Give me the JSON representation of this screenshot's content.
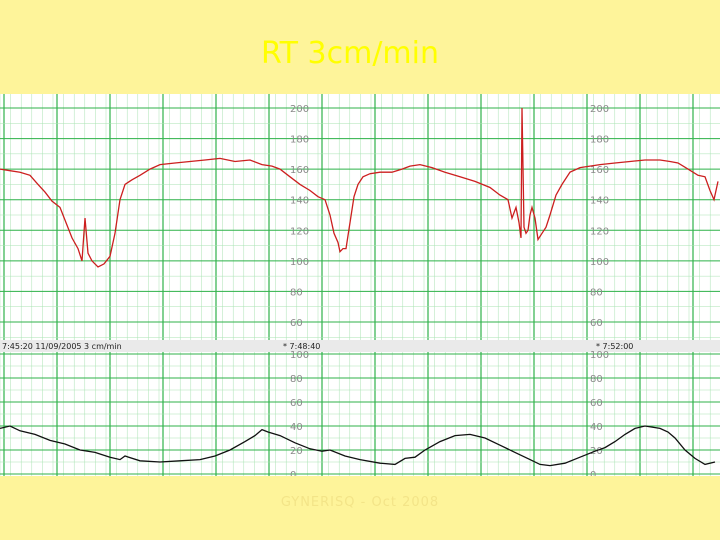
{
  "slide": {
    "title": "RT 3cm/min",
    "footer": "GYNERISQ  -  Oct 2008"
  },
  "strip": {
    "timestamps": [
      "7:45:20  11/09/2005  3 cm/min",
      "* 7:48:40",
      "* 7:52:00"
    ]
  },
  "colors": {
    "fhr": "#cc1f1f",
    "toco": "#111111",
    "grid_major": "#2fb24a",
    "grid_minor": "#a9e3b3",
    "paper": "#ffffff"
  },
  "chart_data": [
    {
      "type": "line",
      "panel": "fetal-heart-rate",
      "ylim": [
        50,
        210
      ],
      "yticks": [
        60,
        80,
        100,
        120,
        140,
        160,
        180,
        200
      ],
      "xlim": [
        0,
        720
      ],
      "series": [
        {
          "color": "#cc1f1f",
          "x": [
            0,
            10,
            20,
            30,
            38,
            45,
            52,
            60,
            66,
            72,
            78,
            82,
            85,
            88,
            92,
            98,
            104,
            110,
            115,
            120,
            125,
            132,
            140,
            150,
            160,
            175,
            190,
            205,
            220,
            235,
            250,
            262,
            272,
            280,
            290,
            300,
            310,
            318,
            325,
            330,
            334,
            338,
            340,
            343,
            346,
            350,
            354,
            358,
            363,
            370,
            380,
            392,
            402,
            410,
            420,
            432,
            445,
            460,
            475,
            490,
            500,
            508,
            512,
            516,
            519,
            521,
            522,
            524,
            526,
            528,
            530,
            532,
            535,
            538,
            542,
            546,
            550,
            556,
            562,
            570,
            580,
            590,
            600,
            615,
            630,
            645,
            660,
            670,
            678,
            688,
            698,
            705,
            710,
            714,
            718
          ],
          "y": [
            160,
            159,
            158,
            156,
            150,
            145,
            139,
            135,
            125,
            115,
            108,
            100,
            128,
            105,
            100,
            96,
            98,
            103,
            118,
            140,
            150,
            153,
            156,
            160,
            163,
            164,
            165,
            166,
            167,
            165,
            166,
            163,
            162,
            160,
            155,
            150,
            146,
            142,
            140,
            130,
            118,
            112,
            106,
            108,
            108,
            125,
            142,
            150,
            155,
            157,
            158,
            158,
            160,
            162,
            163,
            161,
            158,
            155,
            152,
            148,
            143,
            140,
            128,
            135,
            125,
            115,
            200,
            122,
            118,
            120,
            130,
            135,
            128,
            114,
            118,
            122,
            130,
            143,
            150,
            158,
            161,
            162,
            163,
            164,
            165,
            166,
            166,
            165,
            164,
            160,
            156,
            155,
            146,
            140,
            152
          ]
        }
      ]
    },
    {
      "type": "line",
      "panel": "uterine-activity",
      "ylim": [
        0,
        100
      ],
      "yticks": [
        0,
        20,
        40,
        60,
        80,
        100
      ],
      "xlim": [
        0,
        720
      ],
      "series": [
        {
          "color": "#111111",
          "x": [
            0,
            10,
            20,
            35,
            50,
            65,
            80,
            95,
            110,
            120,
            125,
            140,
            160,
            180,
            200,
            215,
            230,
            245,
            255,
            262,
            268,
            280,
            295,
            310,
            322,
            330,
            345,
            360,
            380,
            395,
            405,
            415,
            425,
            440,
            455,
            470,
            485,
            500,
            515,
            530,
            540,
            550,
            565,
            580,
            595,
            605,
            615,
            625,
            635,
            645,
            660,
            668,
            675,
            685,
            695,
            705,
            715
          ],
          "y": [
            38,
            40,
            36,
            33,
            28,
            25,
            20,
            18,
            14,
            12,
            15,
            11,
            10,
            11,
            12,
            15,
            20,
            27,
            32,
            37,
            35,
            32,
            26,
            21,
            19,
            20,
            15,
            12,
            9,
            8,
            13,
            14,
            20,
            27,
            32,
            33,
            30,
            24,
            18,
            12,
            8,
            7,
            9,
            14,
            19,
            22,
            27,
            33,
            38,
            40,
            38,
            35,
            30,
            20,
            13,
            8,
            10
          ]
        }
      ]
    }
  ]
}
